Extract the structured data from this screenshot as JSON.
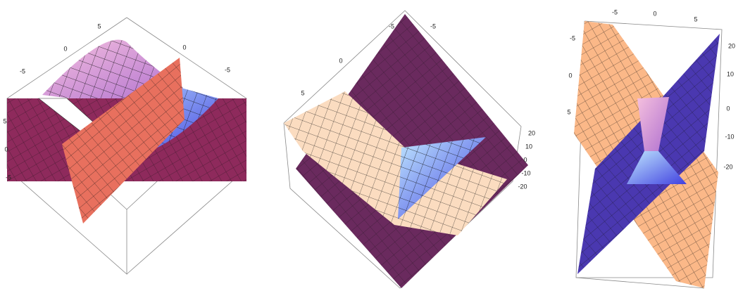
{
  "plots": [
    {
      "top_left_ticks": [
        5,
        0,
        -5
      ],
      "top_right_ticks": [
        0,
        -5
      ],
      "left_ticks": [
        5,
        0,
        -5
      ]
    },
    {
      "top_left_ticks": [
        -5,
        0,
        5
      ],
      "top_right_ticks": [
        -5
      ],
      "right_ticks": [
        20,
        10,
        0,
        -10,
        -20
      ]
    },
    {
      "top_ticks": [
        -5,
        0,
        5
      ],
      "left_ticks": [
        -5,
        0,
        5
      ],
      "right_ticks": [
        20,
        10,
        0,
        -10,
        -20
      ]
    }
  ]
}
